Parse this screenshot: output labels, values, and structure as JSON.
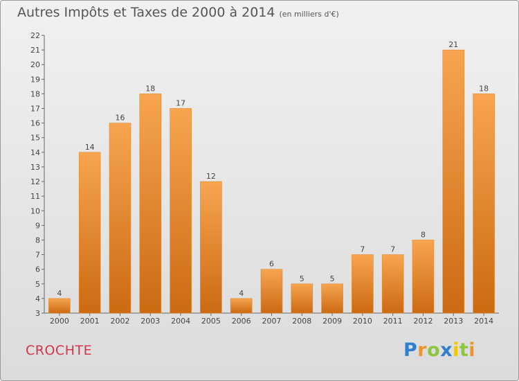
{
  "header": {
    "title": "Autres Impôts et Taxes de 2000 à 2014",
    "subtitle": "(en milliers d'€)"
  },
  "footer": {
    "commune": "CROCHTE",
    "logo": {
      "text": "Proxiti",
      "letters": [
        {
          "char": "P",
          "color": "#2f7fd0"
        },
        {
          "char": "r",
          "color": "#f0932b"
        },
        {
          "char": "o",
          "color": "#8cc63f"
        },
        {
          "char": "x",
          "color": "#2f7fd0"
        },
        {
          "char": "i",
          "color": "#f5c400"
        },
        {
          "char": "t",
          "color": "#8cc63f"
        },
        {
          "char": "i",
          "color": "#f0932b"
        }
      ]
    }
  },
  "chart_data": {
    "type": "bar",
    "title": "Autres Impôts et Taxes de 2000 à 2014",
    "subtitle": "(en milliers d'€)",
    "categories": [
      "2000",
      "2001",
      "2002",
      "2003",
      "2004",
      "2005",
      "2006",
      "2007",
      "2008",
      "2009",
      "2010",
      "2011",
      "2012",
      "2013",
      "2014"
    ],
    "values": [
      4,
      14,
      16,
      18,
      17,
      12,
      4,
      6,
      5,
      5,
      7,
      7,
      8,
      21,
      18
    ],
    "ylim": [
      3,
      22
    ],
    "yticks": [
      3,
      4,
      5,
      6,
      7,
      8,
      9,
      10,
      11,
      12,
      13,
      14,
      15,
      16,
      17,
      18,
      19,
      20,
      21,
      22
    ],
    "grid": false,
    "colors": {
      "bar_top": "#f7a550",
      "bar_bottom": "#cc6a12",
      "bar_edge": "#e08a30"
    }
  }
}
